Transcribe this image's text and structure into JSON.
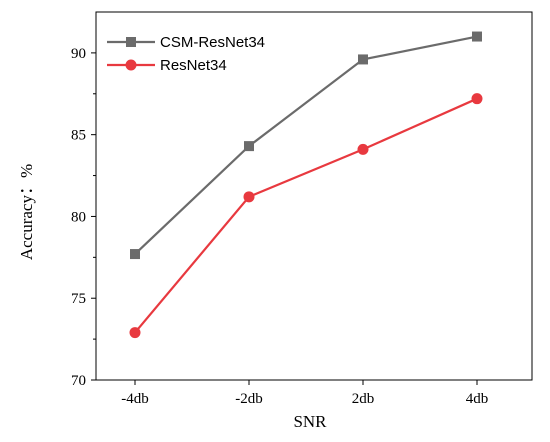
{
  "chart_data": {
    "type": "line",
    "xlabel": "SNR",
    "ylabel": "Accuracy：%",
    "categories": [
      "-4db",
      "-2db",
      "2db",
      "4db"
    ],
    "ylim": [
      70,
      92.5
    ],
    "yticks": [
      70,
      75,
      80,
      85,
      90
    ],
    "grid": false,
    "legend_position": "top-left",
    "series": [
      {
        "name": "CSM-ResNet34",
        "values": [
          77.7,
          84.3,
          89.6,
          91.0
        ],
        "color": "#6b6b6b",
        "marker": "square"
      },
      {
        "name": "ResNet34",
        "values": [
          72.9,
          81.2,
          84.1,
          87.2
        ],
        "color": "#e8393f",
        "marker": "circle"
      }
    ]
  }
}
